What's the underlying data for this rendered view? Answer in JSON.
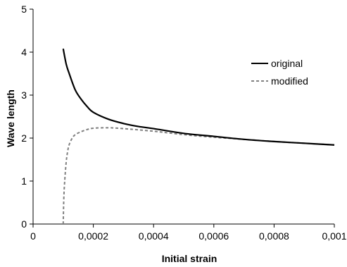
{
  "chart_data": {
    "type": "line",
    "xlabel": "Initial strain",
    "ylabel": "Wave length",
    "xlim": [
      0,
      0.001
    ],
    "ylim": [
      0,
      5
    ],
    "x_ticks": [
      "0",
      "0,0002",
      "0,0004",
      "0,0006",
      "0,0008",
      "0,001"
    ],
    "y_ticks": [
      "0",
      "1",
      "2",
      "3",
      "4",
      "5"
    ],
    "grid": false,
    "legend_position": "right",
    "series": [
      {
        "name": "original",
        "style": "solid",
        "color": "#000000",
        "x": [
          0.0001,
          0.00011,
          0.00012,
          0.00014,
          0.00016,
          0.00018,
          0.0002,
          0.00025,
          0.0003,
          0.00035,
          0.0004,
          0.0005,
          0.0006,
          0.0007,
          0.0008,
          0.0009,
          0.001
        ],
        "y": [
          4.08,
          3.72,
          3.5,
          3.12,
          2.9,
          2.73,
          2.6,
          2.44,
          2.34,
          2.27,
          2.22,
          2.11,
          2.04,
          1.97,
          1.92,
          1.88,
          1.84
        ]
      },
      {
        "name": "modified",
        "style": "dashed",
        "color": "#808080",
        "x": [
          0.0001,
          0.000102,
          0.000105,
          0.00011,
          0.000115,
          0.00012,
          0.00013,
          0.00014,
          0.00016,
          0.00018,
          0.0002,
          0.00025,
          0.0003,
          0.0004,
          0.0005,
          0.0006,
          0.0007,
          0.0008,
          0.0009,
          0.001
        ],
        "y": [
          0,
          0.6,
          1.0,
          1.45,
          1.7,
          1.85,
          2.0,
          2.08,
          2.15,
          2.2,
          2.23,
          2.24,
          2.22,
          2.16,
          2.08,
          2.02,
          1.97,
          1.92,
          1.88,
          1.84
        ]
      }
    ]
  }
}
